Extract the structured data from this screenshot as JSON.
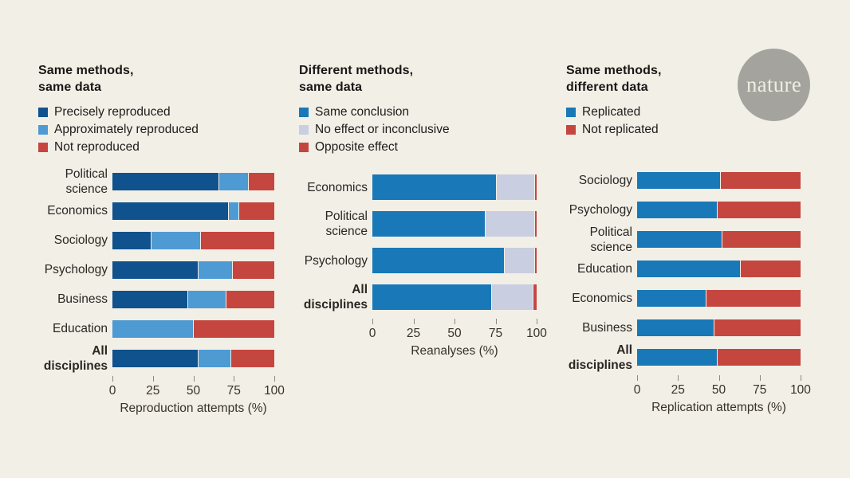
{
  "page": {
    "background": "#f2efe7"
  },
  "logo": {
    "text": "nature",
    "circle_color": "#a5a39d",
    "text_color": "#efece3"
  },
  "colors": {
    "dark_blue": "#10528d",
    "light_blue": "#4e9ad3",
    "mid_blue": "#1978b7",
    "lavender": "#c9cee0",
    "red": "#c5463f",
    "tick": "#8f897d",
    "background": "#f2efe7"
  },
  "chart_data": [
    {
      "type": "bar",
      "stacked": true,
      "orientation": "horizontal",
      "title": "Same methods, same data",
      "title_lines": [
        "Same methods,",
        "same data"
      ],
      "xlabel": "Reproduction attempts (%)",
      "xlim": [
        0,
        100
      ],
      "xticks": [
        0,
        25,
        50,
        75,
        100
      ],
      "legend_position": "top-left",
      "grid": false,
      "categories": [
        {
          "label": "Political\nscience",
          "bold": false
        },
        {
          "label": "Economics",
          "bold": false
        },
        {
          "label": "Sociology",
          "bold": false
        },
        {
          "label": "Psychology",
          "bold": false
        },
        {
          "label": "Business",
          "bold": false
        },
        {
          "label": "Education",
          "bold": false
        },
        {
          "label": "All\ndisciplines",
          "bold": true
        }
      ],
      "series": [
        {
          "name": "Precisely reproduced",
          "color": "#10528d",
          "values": [
            66,
            72,
            24,
            53,
            47,
            0,
            53
          ]
        },
        {
          "name": "Approximately reproduced",
          "color": "#4e9ad3",
          "values": [
            18,
            6,
            30,
            21,
            23,
            50,
            20
          ]
        },
        {
          "name": "Not reproduced",
          "color": "#c5463f",
          "values": [
            16,
            22,
            46,
            26,
            30,
            50,
            27
          ]
        }
      ]
    },
    {
      "type": "bar",
      "stacked": true,
      "orientation": "horizontal",
      "title": "Different methods, same data",
      "title_lines": [
        "Different methods,",
        "same data"
      ],
      "xlabel": "Reanalyses (%)",
      "xlim": [
        0,
        100
      ],
      "xticks": [
        0,
        25,
        50,
        75,
        100
      ],
      "legend_position": "top-left",
      "grid": false,
      "categories": [
        {
          "label": "Economics",
          "bold": false
        },
        {
          "label": "Political\nscience",
          "bold": false
        },
        {
          "label": "Psychology",
          "bold": false
        },
        {
          "label": "All\ndisciplines",
          "bold": true
        }
      ],
      "series": [
        {
          "name": "Same conclusion",
          "color": "#1978b7",
          "values": [
            76,
            69,
            81,
            73
          ]
        },
        {
          "name": "No effect or inconclusive",
          "color": "#c9cee0",
          "values": [
            23,
            30,
            18,
            25
          ]
        },
        {
          "name": "Opposite effect",
          "color": "#c5463f",
          "values": [
            1,
            1,
            1,
            2
          ]
        }
      ]
    },
    {
      "type": "bar",
      "stacked": true,
      "orientation": "horizontal",
      "title": "Same methods, different data",
      "title_lines": [
        "Same methods,",
        "different data"
      ],
      "xlabel": "Replication attempts (%)",
      "xlim": [
        0,
        100
      ],
      "xticks": [
        0,
        25,
        50,
        75,
        100
      ],
      "legend_position": "top-left",
      "grid": false,
      "categories": [
        {
          "label": "Sociology",
          "bold": false
        },
        {
          "label": "Psychology",
          "bold": false
        },
        {
          "label": "Political\nscience",
          "bold": false
        },
        {
          "label": "Education",
          "bold": false
        },
        {
          "label": "Economics",
          "bold": false
        },
        {
          "label": "Business",
          "bold": false
        },
        {
          "label": "All\ndisciplines",
          "bold": true
        }
      ],
      "series": [
        {
          "name": "Replicated",
          "color": "#1978b7",
          "values": [
            51,
            49,
            52,
            63,
            42,
            47,
            49
          ]
        },
        {
          "name": "Not replicated",
          "color": "#c5463f",
          "values": [
            49,
            51,
            48,
            37,
            58,
            53,
            51
          ]
        }
      ]
    }
  ]
}
